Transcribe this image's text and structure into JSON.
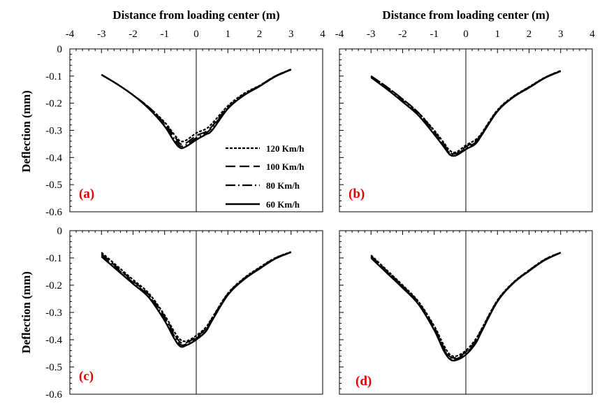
{
  "figure": {
    "xlabel": "Distance from loading center (m)",
    "ylabel": "Deflection (mm)",
    "x_tick_labels": [
      "-4",
      "-3",
      "-2",
      "-1",
      "0",
      "1",
      "2",
      "3",
      "4"
    ],
    "y_tick_labels": [
      "0",
      "-0.1",
      "-0.2",
      "-0.3",
      "-0.4",
      "-0.5",
      "-0.6"
    ],
    "legend": [
      "120 Km/h",
      "100 Km/h",
      "80 Km/h",
      "60 Km/h"
    ]
  },
  "chart_data": [
    {
      "type": "line",
      "panel_label": "(a)",
      "xlim": [
        -4,
        4
      ],
      "ylim": [
        -0.6,
        0
      ],
      "series": [
        {
          "name": "120 Km/h",
          "x": [
            -3,
            -2.5,
            -2,
            -1.5,
            -1,
            -0.7,
            -0.5,
            -0.3,
            0,
            0.3,
            0.5,
            1,
            1.5,
            2,
            2.5,
            3
          ],
          "y": [
            -0.095,
            -0.13,
            -0.17,
            -0.215,
            -0.27,
            -0.315,
            -0.34,
            -0.335,
            -0.31,
            -0.295,
            -0.275,
            -0.21,
            -0.165,
            -0.135,
            -0.1,
            -0.075
          ]
        },
        {
          "name": "100 Km/h",
          "x": [
            -3,
            -2.5,
            -2,
            -1.5,
            -1,
            -0.7,
            -0.5,
            -0.3,
            0,
            0.3,
            0.5,
            1,
            1.5,
            2,
            2.5,
            3
          ],
          "y": [
            -0.095,
            -0.13,
            -0.17,
            -0.215,
            -0.275,
            -0.32,
            -0.35,
            -0.345,
            -0.32,
            -0.305,
            -0.285,
            -0.215,
            -0.168,
            -0.136,
            -0.1,
            -0.075
          ]
        },
        {
          "name": "80 Km/h",
          "x": [
            -3,
            -2.5,
            -2,
            -1.5,
            -1,
            -0.7,
            -0.5,
            -0.3,
            0,
            0.3,
            0.5,
            1,
            1.5,
            2,
            2.5,
            3
          ],
          "y": [
            -0.095,
            -0.13,
            -0.17,
            -0.218,
            -0.28,
            -0.33,
            -0.358,
            -0.352,
            -0.328,
            -0.31,
            -0.29,
            -0.218,
            -0.17,
            -0.137,
            -0.101,
            -0.076
          ]
        },
        {
          "name": "60 Km/h",
          "x": [
            -3,
            -2.5,
            -2,
            -1.5,
            -1,
            -0.7,
            -0.5,
            -0.3,
            0,
            0.3,
            0.5,
            1,
            1.5,
            2,
            2.5,
            3
          ],
          "y": [
            -0.095,
            -0.13,
            -0.17,
            -0.22,
            -0.285,
            -0.34,
            -0.365,
            -0.358,
            -0.335,
            -0.315,
            -0.3,
            -0.22,
            -0.172,
            -0.138,
            -0.102,
            -0.076
          ]
        }
      ]
    },
    {
      "type": "line",
      "panel_label": "(b)",
      "xlim": [
        -4,
        4
      ],
      "ylim": [
        -0.6,
        0
      ],
      "series": [
        {
          "name": "120 Km/h",
          "x": [
            -3,
            -2.5,
            -2,
            -1.5,
            -1,
            -0.7,
            -0.5,
            -0.3,
            0,
            0.3,
            0.5,
            1,
            1.5,
            2,
            2.5,
            3
          ],
          "y": [
            -0.1,
            -0.14,
            -0.185,
            -0.235,
            -0.3,
            -0.345,
            -0.375,
            -0.38,
            -0.355,
            -0.335,
            -0.31,
            -0.225,
            -0.175,
            -0.14,
            -0.105,
            -0.08
          ]
        },
        {
          "name": "100 Km/h",
          "x": [
            -3,
            -2.5,
            -2,
            -1.5,
            -1,
            -0.7,
            -0.5,
            -0.3,
            0,
            0.3,
            0.5,
            1,
            1.5,
            2,
            2.5,
            3
          ],
          "y": [
            -0.1,
            -0.14,
            -0.185,
            -0.235,
            -0.305,
            -0.35,
            -0.382,
            -0.385,
            -0.36,
            -0.34,
            -0.313,
            -0.227,
            -0.176,
            -0.141,
            -0.106,
            -0.08
          ]
        },
        {
          "name": "80 Km/h",
          "x": [
            -3,
            -2.5,
            -2,
            -1.5,
            -1,
            -0.7,
            -0.5,
            -0.3,
            0,
            0.3,
            0.5,
            1,
            1.5,
            2,
            2.5,
            3
          ],
          "y": [
            -0.102,
            -0.145,
            -0.19,
            -0.24,
            -0.31,
            -0.355,
            -0.385,
            -0.388,
            -0.365,
            -0.345,
            -0.315,
            -0.228,
            -0.177,
            -0.142,
            -0.106,
            -0.081
          ]
        },
        {
          "name": "60 Km/h",
          "x": [
            -3,
            -2.5,
            -2,
            -1.5,
            -1,
            -0.7,
            -0.5,
            -0.3,
            0,
            0.3,
            0.5,
            1,
            1.5,
            2,
            2.5,
            3
          ],
          "y": [
            -0.105,
            -0.148,
            -0.195,
            -0.245,
            -0.315,
            -0.36,
            -0.39,
            -0.392,
            -0.37,
            -0.35,
            -0.318,
            -0.23,
            -0.178,
            -0.143,
            -0.107,
            -0.082
          ]
        }
      ]
    },
    {
      "type": "line",
      "panel_label": "(c)",
      "xlim": [
        -4,
        4
      ],
      "ylim": [
        -0.6,
        0
      ],
      "series": [
        {
          "name": "120 Km/h",
          "x": [
            -3,
            -2.5,
            -2,
            -1.5,
            -1,
            -0.7,
            -0.5,
            -0.3,
            0,
            0.3,
            0.5,
            1,
            1.5,
            2,
            2.5,
            3
          ],
          "y": [
            -0.08,
            -0.13,
            -0.18,
            -0.23,
            -0.31,
            -0.37,
            -0.4,
            -0.405,
            -0.385,
            -0.355,
            -0.32,
            -0.23,
            -0.175,
            -0.135,
            -0.1,
            -0.078
          ]
        },
        {
          "name": "100 Km/h",
          "x": [
            -3,
            -2.5,
            -2,
            -1.5,
            -1,
            -0.7,
            -0.5,
            -0.3,
            0,
            0.3,
            0.5,
            1,
            1.5,
            2,
            2.5,
            3
          ],
          "y": [
            -0.085,
            -0.135,
            -0.185,
            -0.235,
            -0.315,
            -0.378,
            -0.41,
            -0.41,
            -0.39,
            -0.36,
            -0.323,
            -0.232,
            -0.177,
            -0.137,
            -0.101,
            -0.078
          ]
        },
        {
          "name": "80 Km/h",
          "x": [
            -3,
            -2.5,
            -2,
            -1.5,
            -1,
            -0.7,
            -0.5,
            -0.3,
            0,
            0.3,
            0.5,
            1,
            1.5,
            2,
            2.5,
            3
          ],
          "y": [
            -0.09,
            -0.14,
            -0.19,
            -0.24,
            -0.32,
            -0.385,
            -0.418,
            -0.415,
            -0.395,
            -0.365,
            -0.326,
            -0.234,
            -0.179,
            -0.139,
            -0.102,
            -0.079
          ]
        },
        {
          "name": "60 Km/h",
          "x": [
            -3,
            -2.5,
            -2,
            -1.5,
            -1,
            -0.7,
            -0.5,
            -0.3,
            0,
            0.3,
            0.5,
            1,
            1.5,
            2,
            2.5,
            3
          ],
          "y": [
            -0.095,
            -0.145,
            -0.195,
            -0.245,
            -0.33,
            -0.395,
            -0.425,
            -0.42,
            -0.4,
            -0.37,
            -0.33,
            -0.236,
            -0.18,
            -0.14,
            -0.103,
            -0.079
          ]
        }
      ]
    },
    {
      "type": "line",
      "panel_label": "(d)",
      "xlim": [
        -4,
        4
      ],
      "ylim": [
        -0.6,
        0
      ],
      "series": [
        {
          "name": "120 Km/h",
          "x": [
            -3,
            -2.5,
            -2,
            -1.5,
            -1,
            -0.7,
            -0.5,
            -0.3,
            0,
            0.3,
            0.5,
            1,
            1.5,
            2,
            2.5,
            3
          ],
          "y": [
            -0.09,
            -0.145,
            -0.2,
            -0.26,
            -0.35,
            -0.42,
            -0.455,
            -0.46,
            -0.44,
            -0.4,
            -0.36,
            -0.255,
            -0.19,
            -0.145,
            -0.105,
            -0.08
          ]
        },
        {
          "name": "100 Km/h",
          "x": [
            -3,
            -2.5,
            -2,
            -1.5,
            -1,
            -0.7,
            -0.5,
            -0.3,
            0,
            0.3,
            0.5,
            1,
            1.5,
            2,
            2.5,
            3
          ],
          "y": [
            -0.093,
            -0.148,
            -0.203,
            -0.263,
            -0.355,
            -0.428,
            -0.462,
            -0.465,
            -0.445,
            -0.405,
            -0.363,
            -0.257,
            -0.191,
            -0.146,
            -0.106,
            -0.08
          ]
        },
        {
          "name": "80 Km/h",
          "x": [
            -3,
            -2.5,
            -2,
            -1.5,
            -1,
            -0.7,
            -0.5,
            -0.3,
            0,
            0.3,
            0.5,
            1,
            1.5,
            2,
            2.5,
            3
          ],
          "y": [
            -0.096,
            -0.151,
            -0.206,
            -0.266,
            -0.36,
            -0.434,
            -0.467,
            -0.47,
            -0.45,
            -0.41,
            -0.366,
            -0.259,
            -0.192,
            -0.147,
            -0.107,
            -0.081
          ]
        },
        {
          "name": "60 Km/h",
          "x": [
            -3,
            -2.5,
            -2,
            -1.5,
            -1,
            -0.7,
            -0.5,
            -0.3,
            0,
            0.3,
            0.5,
            1,
            1.5,
            2,
            2.5,
            3
          ],
          "y": [
            -0.1,
            -0.155,
            -0.21,
            -0.27,
            -0.365,
            -0.44,
            -0.472,
            -0.475,
            -0.455,
            -0.415,
            -0.37,
            -0.26,
            -0.193,
            -0.148,
            -0.108,
            -0.081
          ]
        }
      ]
    }
  ]
}
